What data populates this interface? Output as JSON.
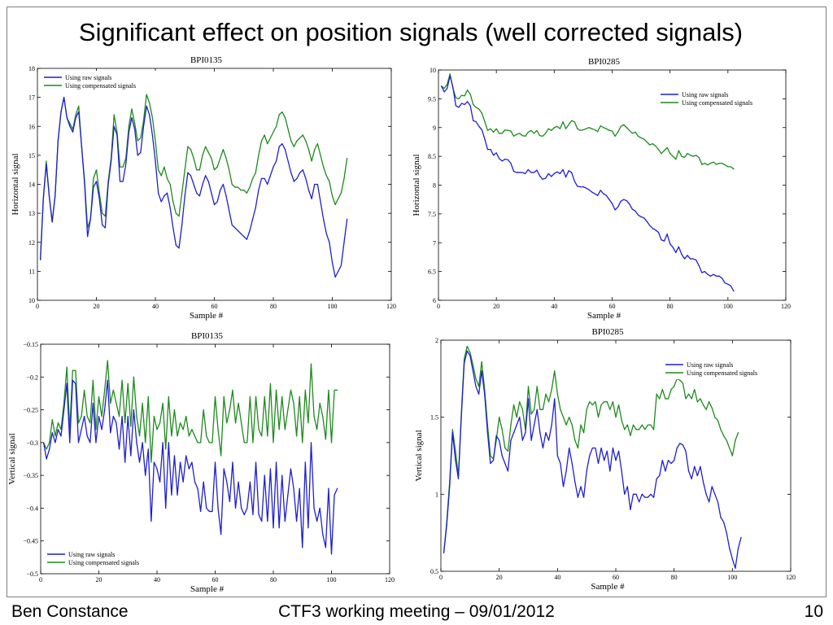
{
  "slide": {
    "title": "Significant effect on position signals (well corrected signals)",
    "footer_author": "Ben Constance",
    "footer_meeting": "CTF3 working meeting – 09/01/2012",
    "footer_page": "10"
  },
  "colors": {
    "raw": "#1f1fcf",
    "comp": "#1e8a1e"
  },
  "chart_data": [
    {
      "type": "line",
      "title": "BPI0135",
      "xlabel": "Sample #",
      "ylabel": "Horizontal signal",
      "xlim": [
        0,
        120
      ],
      "ylim": [
        10,
        18
      ],
      "xticks": [
        0,
        20,
        40,
        60,
        80,
        100,
        120
      ],
      "yticks": [
        10,
        11,
        12,
        13,
        14,
        15,
        16,
        17,
        18
      ],
      "legend_position": "top-left",
      "series": [
        {
          "name": "Using raw signals",
          "color": "raw",
          "values": [
            11.4,
            13.5,
            14.7,
            13.6,
            12.7,
            13.6,
            15.5,
            16.5,
            17.0,
            16.3,
            16.0,
            15.8,
            16.3,
            16.5,
            15.3,
            14.0,
            12.2,
            12.8,
            13.9,
            14.1,
            13.5,
            12.6,
            12.5,
            14.0,
            14.8,
            16.0,
            15.7,
            14.1,
            14.1,
            14.7,
            15.8,
            16.3,
            15.9,
            15.0,
            15.1,
            16.0,
            16.7,
            16.4,
            15.7,
            14.8,
            13.7,
            13.4,
            13.6,
            13.7,
            13.2,
            12.5,
            11.9,
            11.8,
            12.6,
            13.6,
            14.4,
            14.3,
            14.0,
            13.7,
            13.6,
            14.0,
            14.3,
            14.1,
            13.7,
            13.3,
            13.4,
            13.8,
            14.0,
            13.6,
            13.1,
            12.6,
            12.5,
            12.4,
            12.3,
            12.2,
            12.1,
            12.4,
            12.8,
            13.2,
            13.8,
            14.2,
            14.2,
            14.0,
            14.3,
            14.6,
            14.8,
            15.3,
            15.4,
            15.2,
            14.8,
            14.4,
            14.1,
            14.2,
            14.4,
            14.5,
            14.2,
            13.8,
            13.5,
            14.0,
            14.0,
            13.4,
            12.8,
            12.3,
            12.0,
            11.3,
            10.8,
            11.0,
            11.2,
            12.0,
            12.8
          ]
        },
        {
          "name": "Using compensated signals",
          "color": "comp",
          "values": [
            11.4,
            13.5,
            14.8,
            13.6,
            12.7,
            13.6,
            15.5,
            16.5,
            17.0,
            16.3,
            16.1,
            15.9,
            16.4,
            16.7,
            15.3,
            14.1,
            12.5,
            12.8,
            14.2,
            14.5,
            13.7,
            13.0,
            12.9,
            14.1,
            14.9,
            16.4,
            15.8,
            14.6,
            14.6,
            14.9,
            16.0,
            16.6,
            16.1,
            15.5,
            15.6,
            16.2,
            17.1,
            16.8,
            16.3,
            15.5,
            14.5,
            14.3,
            14.6,
            14.2,
            14.0,
            13.4,
            13.0,
            12.9,
            13.7,
            14.5,
            15.3,
            15.2,
            14.9,
            14.5,
            14.5,
            15.0,
            15.3,
            15.1,
            14.9,
            14.5,
            14.6,
            14.9,
            15.2,
            14.9,
            14.5,
            14.0,
            13.9,
            13.9,
            13.8,
            13.8,
            13.7,
            13.9,
            14.2,
            14.4,
            15.0,
            15.5,
            15.7,
            15.4,
            15.6,
            15.8,
            16.0,
            16.4,
            16.5,
            16.3,
            15.9,
            15.5,
            15.3,
            15.5,
            15.6,
            15.7,
            15.5,
            15.2,
            14.8,
            15.2,
            15.4,
            15.0,
            14.6,
            14.3,
            14.1,
            13.6,
            13.3,
            13.5,
            13.7,
            14.2,
            14.9
          ]
        }
      ]
    },
    {
      "type": "line",
      "title": "BPI0285",
      "xlabel": "Sample #",
      "ylabel": "Horizontal signal",
      "xlim": [
        0,
        120
      ],
      "ylim": [
        6,
        10
      ],
      "xticks": [
        0,
        20,
        40,
        60,
        80,
        100,
        120
      ],
      "yticks": [
        6,
        6.5,
        7,
        7.5,
        8,
        8.5,
        9,
        9.5,
        10
      ],
      "legend_position": "top-right",
      "series": [
        {
          "name": "Using raw signals",
          "color": "raw",
          "values": [
            9.72,
            9.62,
            9.68,
            9.9,
            9.7,
            9.38,
            9.35,
            9.42,
            9.4,
            9.45,
            9.38,
            9.12,
            9.1,
            9.02,
            8.96,
            8.8,
            8.62,
            8.62,
            8.52,
            8.56,
            8.46,
            8.42,
            8.45,
            8.44,
            8.38,
            8.24,
            8.22,
            8.22,
            8.22,
            8.2,
            8.27,
            8.22,
            8.22,
            8.26,
            8.16,
            8.1,
            8.12,
            8.2,
            8.15,
            8.2,
            8.23,
            8.2,
            8.27,
            8.14,
            8.25,
            8.22,
            8.07,
            7.98,
            7.97,
            7.97,
            7.95,
            7.92,
            7.88,
            7.85,
            7.82,
            7.91,
            7.85,
            7.82,
            7.75,
            7.68,
            7.57,
            7.62,
            7.72,
            7.75,
            7.73,
            7.67,
            7.58,
            7.55,
            7.48,
            7.45,
            7.43,
            7.37,
            7.3,
            7.25,
            7.22,
            7.18,
            7.05,
            7.03,
            7.15,
            6.98,
            6.92,
            6.83,
            6.93,
            6.8,
            6.72,
            6.78,
            6.72,
            6.72,
            6.7,
            6.6,
            6.48,
            6.5,
            6.45,
            6.42,
            6.45,
            6.42,
            6.42,
            6.38,
            6.3,
            6.28,
            6.25,
            6.16
          ]
        },
        {
          "name": "Using compensated signals",
          "color": "comp",
          "values": [
            9.72,
            9.68,
            9.75,
            9.93,
            9.68,
            9.52,
            9.5,
            9.56,
            9.55,
            9.65,
            9.58,
            9.4,
            9.35,
            9.32,
            9.25,
            9.1,
            8.95,
            8.98,
            8.92,
            8.98,
            8.9,
            8.9,
            8.96,
            8.95,
            8.94,
            8.85,
            8.88,
            8.9,
            8.86,
            8.85,
            8.92,
            8.95,
            8.9,
            8.95,
            8.86,
            8.85,
            8.9,
            8.98,
            8.95,
            9.0,
            9.02,
            8.98,
            9.1,
            8.98,
            9.05,
            9.12,
            9.1,
            8.98,
            8.95,
            8.96,
            8.98,
            9.0,
            8.98,
            8.96,
            8.93,
            9.03,
            9.0,
            8.98,
            8.95,
            8.94,
            8.85,
            8.92,
            9.02,
            9.05,
            9.0,
            8.95,
            8.9,
            8.92,
            8.85,
            8.82,
            8.8,
            8.75,
            8.7,
            8.72,
            8.68,
            8.62,
            8.55,
            8.6,
            8.65,
            8.55,
            8.5,
            8.45,
            8.6,
            8.5,
            8.48,
            8.55,
            8.52,
            8.5,
            8.52,
            8.48,
            8.36,
            8.38,
            8.35,
            8.38,
            8.4,
            8.36,
            8.38,
            8.38,
            8.35,
            8.32,
            8.32,
            8.28
          ]
        }
      ]
    },
    {
      "type": "line",
      "title": "BPI0135",
      "xlabel": "Sample #",
      "ylabel": "Vertical signal",
      "xlim": [
        0,
        120
      ],
      "ylim": [
        -0.5,
        -0.15
      ],
      "xticks": [
        0,
        20,
        40,
        60,
        80,
        100,
        120
      ],
      "yticks": [
        -0.5,
        -0.45,
        -0.4,
        -0.35,
        -0.3,
        -0.25,
        -0.2,
        -0.15
      ],
      "legend_position": "bottom-left",
      "series": [
        {
          "name": "Using raw signals",
          "color": "raw",
          "values": [
            -0.3,
            -0.325,
            -0.31,
            -0.285,
            -0.3,
            -0.28,
            -0.29,
            -0.25,
            -0.21,
            -0.3,
            -0.205,
            -0.21,
            -0.3,
            -0.28,
            -0.26,
            -0.29,
            -0.3,
            -0.24,
            -0.3,
            -0.26,
            -0.28,
            -0.25,
            -0.205,
            -0.285,
            -0.26,
            -0.27,
            -0.31,
            -0.26,
            -0.33,
            -0.26,
            -0.32,
            -0.25,
            -0.3,
            -0.33,
            -0.3,
            -0.35,
            -0.31,
            -0.42,
            -0.33,
            -0.34,
            -0.36,
            -0.3,
            -0.4,
            -0.3,
            -0.38,
            -0.32,
            -0.38,
            -0.33,
            -0.36,
            -0.32,
            -0.34,
            -0.33,
            -0.36,
            -0.37,
            -0.405,
            -0.36,
            -0.4,
            -0.405,
            -0.405,
            -0.33,
            -0.4,
            -0.44,
            -0.34,
            -0.36,
            -0.39,
            -0.33,
            -0.4,
            -0.36,
            -0.4,
            -0.41,
            -0.4,
            -0.36,
            -0.41,
            -0.33,
            -0.41,
            -0.42,
            -0.35,
            -0.42,
            -0.34,
            -0.43,
            -0.33,
            -0.43,
            -0.35,
            -0.42,
            -0.38,
            -0.34,
            -0.37,
            -0.42,
            -0.37,
            -0.46,
            -0.33,
            -0.43,
            -0.3,
            -0.4,
            -0.42,
            -0.4,
            -0.44,
            -0.46,
            -0.37,
            -0.47,
            -0.38,
            -0.37
          ]
        },
        {
          "name": "Using compensated signals",
          "color": "comp",
          "values": [
            -0.3,
            -0.31,
            -0.3,
            -0.265,
            -0.29,
            -0.27,
            -0.28,
            -0.24,
            -0.185,
            -0.28,
            -0.19,
            -0.19,
            -0.27,
            -0.26,
            -0.22,
            -0.26,
            -0.27,
            -0.205,
            -0.28,
            -0.23,
            -0.26,
            -0.22,
            -0.175,
            -0.24,
            -0.22,
            -0.24,
            -0.26,
            -0.205,
            -0.27,
            -0.21,
            -0.275,
            -0.2,
            -0.26,
            -0.29,
            -0.24,
            -0.3,
            -0.23,
            -0.33,
            -0.26,
            -0.28,
            -0.27,
            -0.24,
            -0.31,
            -0.23,
            -0.29,
            -0.25,
            -0.29,
            -0.27,
            -0.28,
            -0.26,
            -0.29,
            -0.28,
            -0.29,
            -0.3,
            -0.3,
            -0.25,
            -0.29,
            -0.3,
            -0.3,
            -0.23,
            -0.28,
            -0.32,
            -0.23,
            -0.27,
            -0.25,
            -0.22,
            -0.27,
            -0.24,
            -0.27,
            -0.3,
            -0.3,
            -0.23,
            -0.3,
            -0.23,
            -0.28,
            -0.29,
            -0.23,
            -0.29,
            -0.21,
            -0.3,
            -0.22,
            -0.28,
            -0.23,
            -0.28,
            -0.25,
            -0.22,
            -0.24,
            -0.29,
            -0.23,
            -0.3,
            -0.22,
            -0.27,
            -0.18,
            -0.26,
            -0.28,
            -0.24,
            -0.26,
            -0.295,
            -0.22,
            -0.3,
            -0.22,
            -0.22
          ]
        }
      ]
    },
    {
      "type": "line",
      "title": "BPI0285",
      "xlabel": "Sample #",
      "ylabel": "Vertical signal",
      "xlim": [
        0,
        120
      ],
      "ylim": [
        0.5,
        2
      ],
      "xticks": [
        0,
        20,
        40,
        60,
        80,
        100,
        120
      ],
      "yticks": [
        0.5,
        1,
        1.5,
        2
      ],
      "legend_position": "top-right",
      "series": [
        {
          "name": "Using raw signals",
          "color": "raw",
          "values": [
            0.62,
            0.8,
            1.05,
            1.4,
            1.22,
            1.1,
            1.5,
            1.85,
            1.93,
            1.9,
            1.8,
            1.7,
            1.65,
            1.8,
            1.65,
            1.4,
            1.2,
            1.22,
            1.38,
            1.35,
            1.25,
            1.2,
            1.15,
            1.35,
            1.4,
            1.45,
            1.5,
            1.35,
            1.4,
            1.62,
            1.35,
            1.45,
            1.55,
            1.4,
            1.3,
            1.4,
            1.35,
            1.45,
            1.62,
            1.25,
            1.2,
            1.05,
            1.15,
            1.3,
            1.2,
            1.08,
            0.98,
            1.05,
            0.98,
            1.15,
            1.25,
            1.3,
            1.3,
            1.2,
            1.3,
            1.22,
            1.28,
            1.15,
            1.3,
            1.22,
            1.28,
            1.15,
            1.0,
            1.05,
            0.9,
            1.0,
            1.0,
            0.95,
            1.0,
            0.98,
            0.98,
            1.0,
            0.98,
            1.1,
            1.12,
            1.22,
            1.15,
            1.22,
            1.2,
            1.22,
            1.3,
            1.33,
            1.32,
            1.28,
            1.15,
            1.1,
            1.18,
            1.12,
            1.18,
            1.08,
            1.0,
            0.95,
            1.05,
            1.0,
            0.95,
            0.85,
            0.82,
            0.75,
            0.65,
            0.58,
            0.52,
            0.65,
            0.72
          ]
        },
        {
          "name": "Using compensated signals",
          "color": "comp",
          "values": [
            0.62,
            0.82,
            1.08,
            1.42,
            1.28,
            1.12,
            1.52,
            1.88,
            1.96,
            1.92,
            1.84,
            1.75,
            1.7,
            1.86,
            1.68,
            1.45,
            1.25,
            1.23,
            1.35,
            1.5,
            1.42,
            1.3,
            1.28,
            1.45,
            1.58,
            1.5,
            1.6,
            1.55,
            1.42,
            1.7,
            1.52,
            1.55,
            1.7,
            1.55,
            1.55,
            1.65,
            1.6,
            1.68,
            1.8,
            1.65,
            1.55,
            1.5,
            1.45,
            1.5,
            1.45,
            1.35,
            1.3,
            1.45,
            1.4,
            1.55,
            1.6,
            1.58,
            1.6,
            1.5,
            1.58,
            1.6,
            1.6,
            1.55,
            1.6,
            1.5,
            1.58,
            1.48,
            1.42,
            1.45,
            1.38,
            1.45,
            1.42,
            1.42,
            1.45,
            1.42,
            1.45,
            1.45,
            1.42,
            1.65,
            1.62,
            1.68,
            1.62,
            1.62,
            1.68,
            1.7,
            1.75,
            1.74,
            1.72,
            1.62,
            1.65,
            1.62,
            1.68,
            1.6,
            1.62,
            1.58,
            1.55,
            1.6,
            1.56,
            1.5,
            1.48,
            1.42,
            1.38,
            1.35,
            1.3,
            1.25,
            1.35,
            1.4
          ]
        }
      ]
    }
  ]
}
